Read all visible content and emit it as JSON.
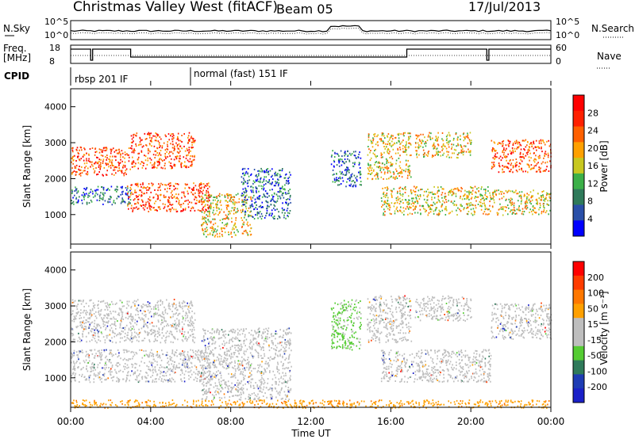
{
  "header": {
    "station": "Christmas Valley West (fitACF)",
    "beam": "Beam 05",
    "date": "17/Jul/2013"
  },
  "mini_panels": {
    "nsky_label": "N.Sky",
    "nsearch_label": "N.Search",
    "freq_label_1": "Freq.",
    "freq_label_2": "[MHz]",
    "nave_label": "Nave",
    "cpid_label": "CPID",
    "noise_ticks": [
      "10^5",
      "10^0"
    ],
    "noise_ticks_right": [
      "10^5",
      "10^0"
    ],
    "freq_ticks": [
      "18",
      "8"
    ],
    "nave_ticks": [
      "60",
      "0"
    ]
  },
  "cpid": {
    "segments": [
      {
        "label": "rbsp 201 IF",
        "start_hour": 0.0
      },
      {
        "label": "normal (fast) 151 IF",
        "start_hour": 6.0
      }
    ]
  },
  "colors": {
    "power_scale": [
      "#0000ff",
      "#2a4fa8",
      "#2f7a5a",
      "#3cb048",
      "#c8c820",
      "#ffa000",
      "#ff6000",
      "#ff2000",
      "#ff0000"
    ],
    "velocity_scale": [
      "#1a20c8",
      "#1e3cb4",
      "#2f7a5a",
      "#55cc33",
      "#bebebe",
      "#bebebe",
      "#ffa000",
      "#ff7800",
      "#ff3c00",
      "#ff0000"
    ]
  },
  "chart_data": [
    {
      "type": "heatmap",
      "title": "Power",
      "ylabel": "Slant Range [km]",
      "xlabel": "Time UT",
      "x_ticks": [
        "00:00",
        "04:00",
        "08:00",
        "12:00",
        "16:00",
        "20:00",
        "00:00"
      ],
      "y_ticks": [
        "1000",
        "2000",
        "3000",
        "4000"
      ],
      "xlim_hours": [
        0,
        24
      ],
      "ylim_km": [
        180,
        4500
      ],
      "colorbar": {
        "label": "Power [dB]",
        "ticks": [
          "28",
          "24",
          "20",
          "16",
          "12",
          "8",
          "4"
        ]
      },
      "bands": [
        {
          "t0": 0.0,
          "t1": 3.0,
          "r0": 2100,
          "r1": 2900,
          "level": "high"
        },
        {
          "t0": 3.0,
          "t1": 6.2,
          "r0": 2300,
          "r1": 3300,
          "level": "high"
        },
        {
          "t0": 0.0,
          "t1": 3.0,
          "r0": 1300,
          "r1": 1800,
          "level": "low"
        },
        {
          "t0": 2.8,
          "t1": 7.0,
          "r0": 1100,
          "r1": 1900,
          "level": "high"
        },
        {
          "t0": 6.5,
          "t1": 9.0,
          "r0": 400,
          "r1": 1600,
          "level": "mid"
        },
        {
          "t0": 8.5,
          "t1": 11.0,
          "r0": 900,
          "r1": 2300,
          "level": "low"
        },
        {
          "t0": 13.0,
          "t1": 14.5,
          "r0": 1800,
          "r1": 2800,
          "level": "low"
        },
        {
          "t0": 14.8,
          "t1": 17.0,
          "r0": 2000,
          "r1": 3300,
          "level": "mid"
        },
        {
          "t0": 15.5,
          "t1": 21.0,
          "r0": 1000,
          "r1": 1800,
          "level": "mid"
        },
        {
          "t0": 17.2,
          "t1": 20.0,
          "r0": 2600,
          "r1": 3300,
          "level": "mid"
        },
        {
          "t0": 21.0,
          "t1": 24.0,
          "r0": 2200,
          "r1": 3100,
          "level": "high"
        },
        {
          "t0": 21.0,
          "t1": 24.0,
          "r0": 1000,
          "r1": 1700,
          "level": "mid"
        }
      ]
    },
    {
      "type": "heatmap",
      "title": "Velocity",
      "ylabel": "Slant Range [km]",
      "xlabel": "Time UT",
      "x_ticks": [
        "00:00",
        "04:00",
        "08:00",
        "12:00",
        "16:00",
        "20:00",
        "00:00"
      ],
      "y_ticks": [
        "1000",
        "2000",
        "3000",
        "4000"
      ],
      "xlim_hours": [
        0,
        24
      ],
      "ylim_km": [
        180,
        4500
      ],
      "colorbar": {
        "label": "Velocity [m s⁻¹]",
        "ticks": [
          "200",
          "100",
          "50",
          "15",
          "-15",
          "-50",
          "-100",
          "-200"
        ]
      },
      "bands": [
        {
          "t0": 0.0,
          "t1": 6.2,
          "r0": 2000,
          "r1": 3200,
          "level": "grey"
        },
        {
          "t0": 0.0,
          "t1": 7.0,
          "r0": 900,
          "r1": 1800,
          "level": "grey"
        },
        {
          "t0": 6.5,
          "t1": 11.0,
          "r0": 400,
          "r1": 2400,
          "level": "grey"
        },
        {
          "t0": 13.0,
          "t1": 14.5,
          "r0": 1800,
          "r1": 3200,
          "level": "green"
        },
        {
          "t0": 14.8,
          "t1": 17.0,
          "r0": 2000,
          "r1": 3300,
          "level": "grey"
        },
        {
          "t0": 15.5,
          "t1": 21.0,
          "r0": 900,
          "r1": 1800,
          "level": "grey"
        },
        {
          "t0": 17.2,
          "t1": 20.0,
          "r0": 2600,
          "r1": 3300,
          "level": "grey"
        },
        {
          "t0": 21.0,
          "t1": 24.0,
          "r0": 2100,
          "r1": 3100,
          "level": "grey"
        },
        {
          "t0": 0.0,
          "t1": 24.0,
          "r0": 180,
          "r1": 400,
          "level": "orange"
        }
      ]
    }
  ]
}
